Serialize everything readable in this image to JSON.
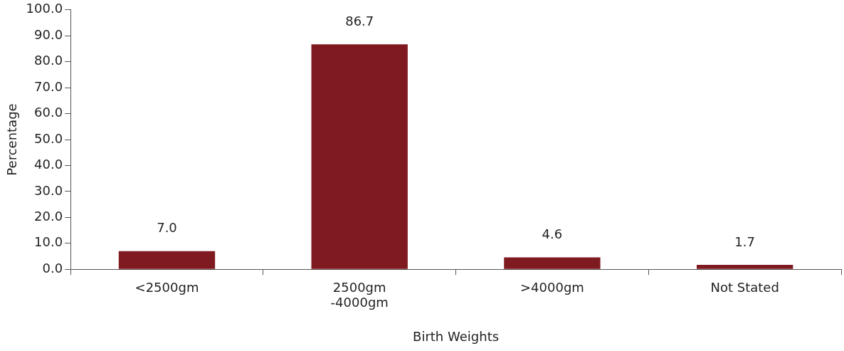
{
  "chart_data": {
    "type": "bar",
    "xlabel": "Birth Weights",
    "ylabel": "Percentage",
    "categories": [
      "<2500gm",
      "2500gm\n-4000gm",
      ">4000gm",
      "Not Stated"
    ],
    "values": [
      7.0,
      86.7,
      4.6,
      1.7
    ],
    "color": "#7f1a20",
    "value_labels": [
      "7.0",
      "86.7",
      "4.6",
      "1.7"
    ],
    "ylim": [
      0,
      100
    ],
    "yticks": [
      {
        "value": 0,
        "label": "0.0"
      },
      {
        "value": 10,
        "label": "10.0"
      },
      {
        "value": 20,
        "label": "20.0"
      },
      {
        "value": 30,
        "label": "30.0"
      },
      {
        "value": 40,
        "label": "40.0"
      },
      {
        "value": 50,
        "label": "50.0"
      },
      {
        "value": 60,
        "label": "60.0"
      },
      {
        "value": 70,
        "label": "70.0"
      },
      {
        "value": 80,
        "label": "80.0"
      },
      {
        "value": 90,
        "label": "90.0"
      },
      {
        "value": 100,
        "label": "100.0"
      }
    ],
    "grid": false,
    "legend": false
  }
}
